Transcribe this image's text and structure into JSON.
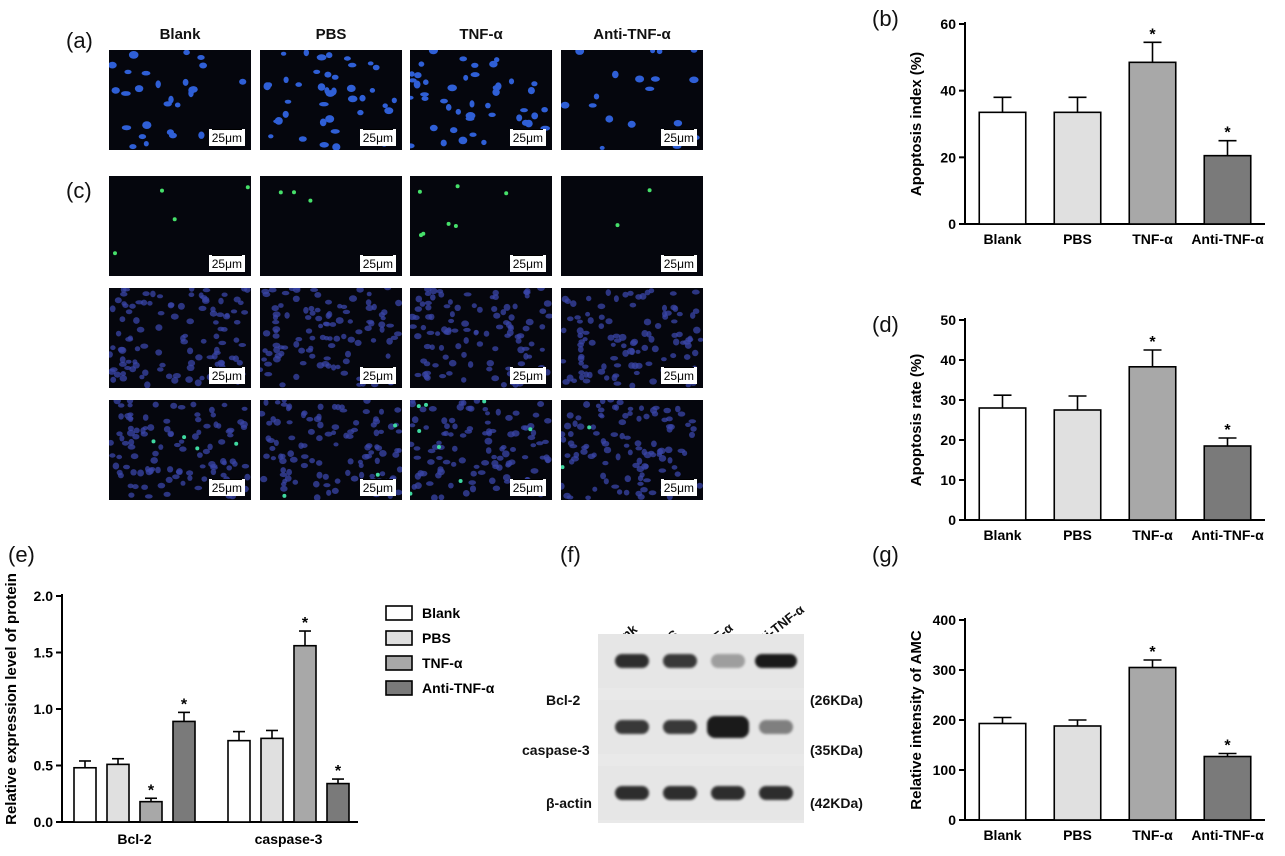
{
  "panel_labels": {
    "a": "(a)",
    "b": "(b)",
    "c": "(c)",
    "d": "(d)",
    "e": "(e)",
    "f": "(f)",
    "g": "(g)"
  },
  "groups": [
    "Blank",
    "PBS",
    "TNF-α",
    "Anti-TNF-α"
  ],
  "scale_bar": "25μm",
  "microscopy": {
    "tunel_label": "",
    "rows": [
      "hoechst",
      "tunel-green",
      "dapi",
      "merge"
    ]
  },
  "colors": {
    "blank": "#ffffff",
    "pbs": "#e0e0e0",
    "tnf": "#a8a8a8",
    "anti": "#7a7a7a",
    "nuclei_blue": "#2f5fd6",
    "green": "#46e06a"
  },
  "chart_data": [
    {
      "id": "b",
      "type": "bar",
      "categories": [
        "Blank",
        "PBS",
        "TNF-α",
        "Anti-TNF-α"
      ],
      "values": [
        33.5,
        33.5,
        48.5,
        20.5
      ],
      "errors": [
        4.5,
        4.5,
        6.0,
        4.5
      ],
      "significance": [
        "",
        "",
        "*",
        "*"
      ],
      "ylabel": "Apoptosis index (%)",
      "ylim": [
        0,
        60
      ],
      "yticks": [
        0,
        20,
        40,
        60
      ]
    },
    {
      "id": "d",
      "type": "bar",
      "categories": [
        "Blank",
        "PBS",
        "TNF-α",
        "Anti-TNF-α"
      ],
      "values": [
        28,
        27.5,
        38.3,
        18.5
      ],
      "errors": [
        3.2,
        3.5,
        4.2,
        2.0
      ],
      "significance": [
        "",
        "",
        "*",
        "*"
      ],
      "ylabel": "Apoptosis rate (%)",
      "ylim": [
        0,
        50
      ],
      "yticks": [
        0,
        10,
        20,
        30,
        40,
        50
      ]
    },
    {
      "id": "e",
      "type": "bar",
      "categories": [
        "Bcl-2",
        "caspase-3"
      ],
      "series": [
        {
          "name": "Blank",
          "values": [
            0.48,
            0.72
          ],
          "errors": [
            0.06,
            0.08
          ],
          "significance": [
            "",
            ""
          ]
        },
        {
          "name": "PBS",
          "values": [
            0.51,
            0.74
          ],
          "errors": [
            0.05,
            0.07
          ],
          "significance": [
            "",
            ""
          ]
        },
        {
          "name": "TNF-α",
          "values": [
            0.18,
            1.56
          ],
          "errors": [
            0.03,
            0.13
          ],
          "significance": [
            "*",
            "*"
          ]
        },
        {
          "name": "Anti-TNF-α",
          "values": [
            0.89,
            0.34
          ],
          "errors": [
            0.08,
            0.04
          ],
          "significance": [
            "*",
            "*"
          ]
        }
      ],
      "ylabel": "Relative expression level of protein",
      "ylim": [
        0,
        2.0
      ],
      "yticks": [
        0.0,
        0.5,
        1.0,
        1.5,
        2.0
      ],
      "legend": "right"
    },
    {
      "id": "g",
      "type": "bar",
      "categories": [
        "Blank",
        "PBS",
        "TNF-α",
        "Anti-TNF-α"
      ],
      "values": [
        193,
        188,
        305,
        127
      ],
      "errors": [
        12,
        12,
        15,
        6
      ],
      "significance": [
        "",
        "",
        "*",
        "*"
      ],
      "ylabel": "Relative intensity of AMC",
      "ylim": [
        0,
        400
      ],
      "yticks": [
        0,
        100,
        200,
        300,
        400
      ]
    }
  ],
  "western_blot": {
    "lanes": [
      "Blank",
      "PBS",
      "TNF-α",
      "Anti-TNF-α"
    ],
    "rows": [
      {
        "protein": "Bcl-2",
        "kda": "(26KDa)",
        "intensity": [
          0.9,
          0.85,
          0.35,
          1.0
        ]
      },
      {
        "protein": "caspase-3",
        "kda": "(35KDa)",
        "intensity": [
          0.85,
          0.85,
          1.0,
          0.5
        ]
      },
      {
        "protein": "β-actin",
        "kda": "(42KDa)",
        "intensity": [
          0.9,
          0.9,
          0.9,
          0.9
        ]
      }
    ]
  }
}
